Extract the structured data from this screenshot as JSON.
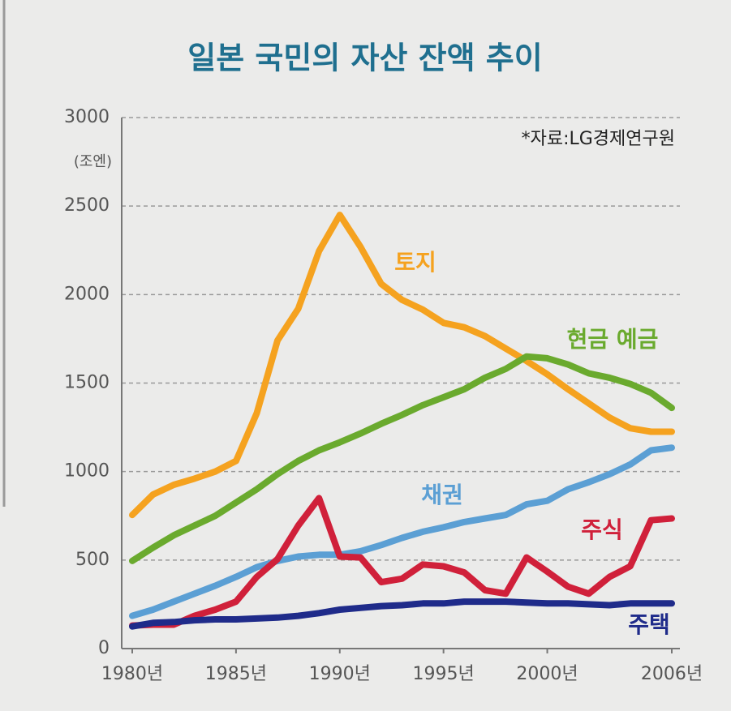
{
  "chart_data": {
    "type": "line",
    "title": "일본 국민의 자산 잔액 추이",
    "source": "*자료:LG경제연구원",
    "y_label": "(조엔)",
    "x": [
      1980,
      1981,
      1982,
      1983,
      1984,
      1985,
      1986,
      1987,
      1988,
      1989,
      1990,
      1991,
      1992,
      1993,
      1994,
      1995,
      1996,
      1997,
      1998,
      1999,
      2000,
      2001,
      2002,
      2003,
      2004,
      2005,
      2006
    ],
    "xlim": [
      1980,
      2006
    ],
    "xticks": [
      {
        "value": 1980,
        "label": "1980년"
      },
      {
        "value": 1985,
        "label": "1985년"
      },
      {
        "value": 1990,
        "label": "1990년"
      },
      {
        "value": 1995,
        "label": "1995년"
      },
      {
        "value": 2000,
        "label": "2000년"
      },
      {
        "value": 2006,
        "label": "2006년"
      }
    ],
    "ylim": [
      0,
      3000
    ],
    "yticks": [
      0,
      500,
      1000,
      1500,
      2000,
      2500,
      3000
    ],
    "grid": true,
    "series": [
      {
        "name": "토지",
        "color": "#f5a21f",
        "values": [
          755,
          870,
          925,
          960,
          1000,
          1060,
          1330,
          1740,
          1920,
          2245,
          2450,
          2270,
          2060,
          1970,
          1915,
          1840,
          1815,
          1765,
          1695,
          1625,
          1550,
          1465,
          1385,
          1305,
          1245,
          1225,
          1225
        ]
      },
      {
        "name": "현금 예금",
        "color": "#6aaa2e",
        "values": [
          495,
          570,
          640,
          695,
          750,
          825,
          900,
          985,
          1060,
          1120,
          1165,
          1215,
          1270,
          1320,
          1375,
          1420,
          1465,
          1530,
          1580,
          1650,
          1640,
          1605,
          1555,
          1530,
          1495,
          1445,
          1360
        ]
      },
      {
        "name": "채권",
        "color": "#5b9fd4",
        "values": [
          185,
          220,
          265,
          310,
          355,
          405,
          460,
          495,
          520,
          530,
          530,
          550,
          585,
          625,
          660,
          685,
          715,
          735,
          755,
          815,
          835,
          900,
          940,
          985,
          1040,
          1120,
          1135
        ]
      },
      {
        "name": "주식",
        "color": "#d0203a",
        "values": [
          130,
          135,
          135,
          185,
          220,
          265,
          405,
          505,
          695,
          850,
          520,
          515,
          375,
          395,
          475,
          465,
          430,
          330,
          310,
          515,
          435,
          350,
          310,
          405,
          465,
          725,
          735
        ]
      },
      {
        "name": "주택",
        "color": "#1f2b8a",
        "values": [
          125,
          145,
          150,
          160,
          165,
          165,
          170,
          175,
          185,
          200,
          220,
          230,
          240,
          245,
          255,
          255,
          265,
          265,
          265,
          260,
          255,
          255,
          250,
          245,
          255,
          255,
          255
        ]
      }
    ]
  }
}
